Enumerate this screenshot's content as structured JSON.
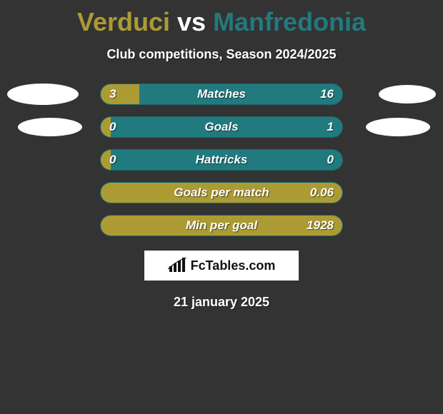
{
  "colors": {
    "bg": "#333333",
    "left_team": "#ac9b33",
    "right_team": "#217a7e",
    "text": "#ffffff",
    "brand_bg": "#ffffff",
    "brand_text": "#111111"
  },
  "typography": {
    "title_fontsize": 36,
    "subtitle_fontsize": 18,
    "bar_label_fontsize": 17,
    "brand_fontsize": 18,
    "date_fontsize": 18
  },
  "header": {
    "left_name": "Verduci",
    "vs": "vs",
    "right_name": "Manfredonia",
    "subtitle": "Club competitions, Season 2024/2025"
  },
  "bars": [
    {
      "label": "Matches",
      "left": "3",
      "right": "16",
      "fill_pct": 16
    },
    {
      "label": "Goals",
      "left": "0",
      "right": "1",
      "fill_pct": 4
    },
    {
      "label": "Hattricks",
      "left": "0",
      "right": "0",
      "fill_pct": 4
    },
    {
      "label": "Goals per match",
      "left": "",
      "right": "0.06",
      "fill_pct": 100
    },
    {
      "label": "Min per goal",
      "left": "",
      "right": "1928",
      "fill_pct": 100
    }
  ],
  "brand": {
    "text": "FcTables.com"
  },
  "date": "21 january 2025"
}
